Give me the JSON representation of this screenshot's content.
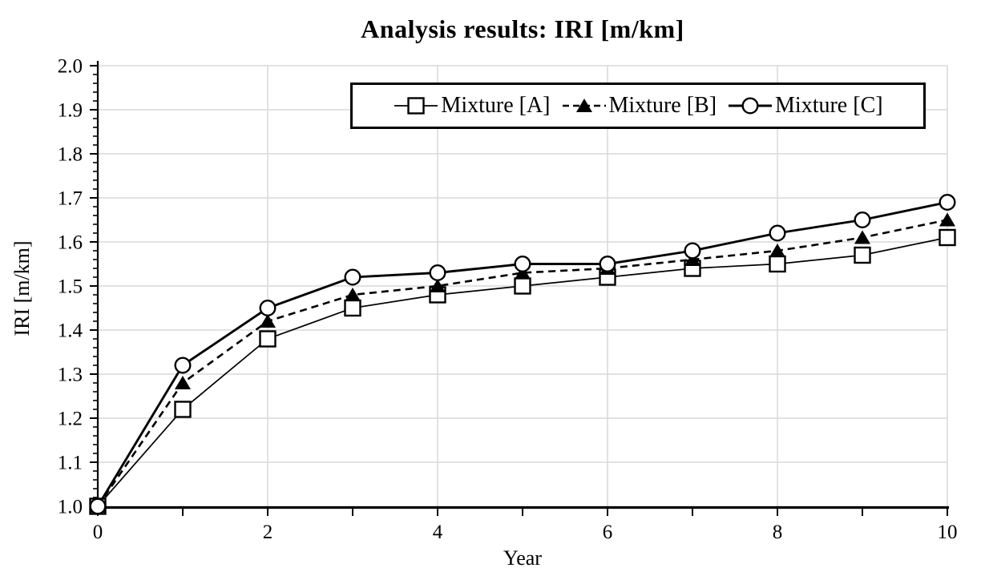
{
  "chart_data": {
    "type": "line",
    "title": "Analysis results: IRI [m/km]",
    "xlabel": "Year",
    "ylabel": "IRI [m/km]",
    "x": [
      0,
      1,
      2,
      3,
      4,
      5,
      6,
      7,
      8,
      9,
      10
    ],
    "xlim": [
      0,
      10
    ],
    "ylim": [
      1.0,
      2.0
    ],
    "x_tick_labels": [
      "0",
      "2",
      "4",
      "6",
      "8",
      "10"
    ],
    "x_minor_tick_step": 1,
    "y_tick_labels": [
      "1.0",
      "1.1",
      "1.2",
      "1.3",
      "1.4",
      "1.5",
      "1.6",
      "1.7",
      "1.8",
      "1.9",
      "2.0"
    ],
    "y_major_step": 0.1,
    "y_minor_step": 0.02,
    "grid": {
      "horizontal": true,
      "vertical": true,
      "vertical_step_years": 2
    },
    "legend_position": "inside-top, framed box",
    "colors": {
      "line": "#000000",
      "grid": "#d9d9d9",
      "axis": "#000000",
      "background": "#ffffff",
      "marker_fill_open": "#ffffff"
    },
    "series": [
      {
        "name": "Mixture [A]",
        "marker": "open-square",
        "line_style": "solid-thin",
        "values": [
          1.0,
          1.22,
          1.38,
          1.45,
          1.48,
          1.5,
          1.52,
          1.54,
          1.55,
          1.57,
          1.61
        ]
      },
      {
        "name": "Mixture [B]",
        "marker": "filled-triangle",
        "line_style": "dashed",
        "values": [
          1.0,
          1.28,
          1.42,
          1.48,
          1.5,
          1.53,
          1.54,
          1.56,
          1.58,
          1.61,
          1.65
        ]
      },
      {
        "name": "Mixture [C]",
        "marker": "open-circle",
        "line_style": "solid-thick",
        "values": [
          1.0,
          1.32,
          1.45,
          1.52,
          1.53,
          1.55,
          1.55,
          1.58,
          1.62,
          1.65,
          1.69
        ]
      }
    ]
  }
}
